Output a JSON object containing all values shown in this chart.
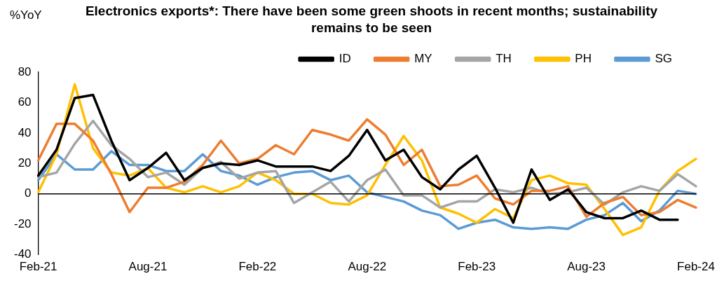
{
  "chart_data": {
    "type": "line",
    "title": "Electronics exports*: There have been some green shoots in recent months; sustainability remains to be seen",
    "ylabel": "%YoY",
    "categories": [
      "Feb-21",
      null,
      null,
      null,
      null,
      null,
      "Aug-21",
      null,
      null,
      null,
      null,
      null,
      "Feb-22",
      null,
      null,
      null,
      null,
      null,
      "Aug-22",
      null,
      null,
      null,
      null,
      null,
      "Feb-23",
      null,
      null,
      null,
      null,
      null,
      "Aug-23",
      null,
      null,
      null,
      null,
      null,
      "Feb-24"
    ],
    "series": [
      {
        "name": "ID",
        "color": "#000000",
        "values": [
          12,
          29,
          63,
          65,
          35,
          9,
          17,
          27,
          9,
          17,
          20,
          19,
          22,
          18,
          18,
          18,
          15,
          25,
          42,
          22,
          29,
          11,
          3,
          16,
          25,
          4,
          -19,
          16,
          -4,
          3,
          -12,
          -16,
          -16,
          -11,
          -17,
          -17,
          null
        ]
      },
      {
        "name": "MY",
        "color": "#ed7d31",
        "values": [
          22,
          46,
          46,
          35,
          13,
          -12,
          4,
          4,
          8,
          19,
          35,
          20,
          23,
          32,
          26,
          42,
          39,
          35,
          49,
          39,
          19,
          29,
          5,
          6,
          12,
          -3,
          -7,
          2,
          2,
          5,
          -15,
          -6,
          -2,
          -14,
          -12,
          -4,
          -9
        ]
      },
      {
        "name": "TH",
        "color": "#a5a5a5",
        "values": [
          11,
          14,
          33,
          48,
          32,
          23,
          11,
          14,
          6,
          17,
          21,
          10,
          14,
          15,
          -6,
          1,
          8,
          -5,
          9,
          16,
          -1,
          -1,
          -9,
          -5,
          -5,
          3,
          1,
          4,
          0,
          1,
          4,
          -7,
          1,
          5,
          2,
          13,
          5
        ]
      },
      {
        "name": "PH",
        "color": "#ffc000",
        "values": [
          1,
          26,
          72,
          30,
          14,
          12,
          17,
          4,
          1,
          5,
          1,
          5,
          14,
          9,
          0,
          0,
          -6,
          -7,
          -1,
          19,
          38,
          22,
          -9,
          -13,
          -19,
          -10,
          -16,
          9,
          12,
          7,
          6,
          -10,
          -27,
          -22,
          2,
          15,
          23
        ]
      },
      {
        "name": "SG",
        "color": "#5b9bd5",
        "values": [
          9,
          26,
          16,
          16,
          28,
          19,
          19,
          15,
          15,
          26,
          15,
          12,
          6,
          11,
          14,
          15,
          9,
          12,
          1,
          -2,
          -5,
          -11,
          -14,
          -23,
          -19,
          -17,
          -22,
          -23,
          -22,
          -23,
          -17,
          -14,
          -6,
          -18,
          -11,
          2,
          0
        ]
      }
    ],
    "ylim": [
      -40,
      80
    ],
    "yticks": [
      -40,
      -20,
      0,
      20,
      40,
      60,
      80
    ],
    "grid": false,
    "legend": "top",
    "marker": "none",
    "line_style": "solid",
    "ref_lines": [
      {
        "axis": "y",
        "value": 0,
        "color": "#000000"
      }
    ]
  }
}
